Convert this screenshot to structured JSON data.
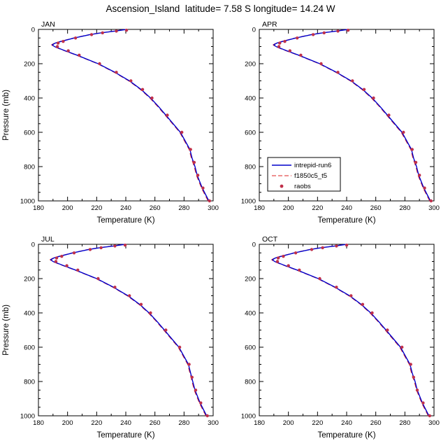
{
  "main": {
    "title": "Ascension_Island  latitude= 7.58 S longitude= 14.24 W"
  },
  "axes": {
    "x": {
      "label": "Temperature (K)",
      "min": 180,
      "max": 300,
      "ticks": [
        180,
        200,
        220,
        240,
        260,
        280,
        300
      ],
      "minor_step": 10
    },
    "y": {
      "label": "Pressure (mb)",
      "min": 0,
      "max": 1000,
      "ticks": [
        0,
        200,
        400,
        600,
        800,
        1000
      ],
      "minor_step": 50,
      "inverted": true
    }
  },
  "legend": {
    "panel": "APR",
    "entries": [
      {
        "label": "intrepid-run6",
        "style": "solid",
        "color": "#0000cc"
      },
      {
        "label": "f1850c5_t5",
        "style": "dashed",
        "color": "#dd2222"
      },
      {
        "label": "raobs",
        "style": "dots",
        "color": "#c0304a"
      }
    ]
  },
  "chart_data": [
    {
      "type": "line",
      "title": "JAN",
      "xlabel": "Temperature (K)",
      "ylabel": "Pressure (mb)",
      "xlim": [
        180,
        300
      ],
      "ylim": [
        1000,
        0
      ],
      "series": [
        {
          "name": "intrepid-run6",
          "style": "solid",
          "color": "#0000cc",
          "pressure": [
            1000,
            925,
            850,
            800,
            750,
            700,
            600,
            500,
            450,
            400,
            350,
            300,
            250,
            200,
            150,
            125,
            100,
            90,
            80,
            70,
            50,
            30,
            20,
            10,
            0
          ],
          "temperature": [
            297,
            292.5,
            289,
            287.5,
            285.5,
            284,
            277.5,
            267.5,
            262.5,
            257,
            250.5,
            242.5,
            232.5,
            221,
            206.5,
            198.5,
            191,
            189.5,
            191.5,
            195.5,
            204.5,
            215.5,
            223,
            232.5,
            240.5
          ]
        },
        {
          "name": "f1850c5_t5",
          "style": "dashed",
          "color": "#dd2222",
          "pressure": [
            1000,
            925,
            850,
            800,
            750,
            700,
            600,
            500,
            450,
            400,
            350,
            300,
            250,
            200,
            150,
            125,
            100,
            90,
            80,
            70,
            50,
            30,
            20,
            10,
            0
          ],
          "temperature": [
            296.5,
            292,
            288.5,
            287,
            285,
            283.5,
            277,
            267,
            262,
            256.5,
            250,
            242,
            232,
            220.5,
            206,
            198,
            190.5,
            189,
            191,
            195,
            204,
            215,
            222.5,
            232,
            240
          ]
        },
        {
          "name": "raobs",
          "style": "markers",
          "color": "#c0304a",
          "pressure": [
            1000,
            925,
            850,
            775,
            700,
            600,
            500,
            400,
            350,
            300,
            250,
            200,
            150,
            125,
            100,
            80,
            70,
            50,
            30,
            20,
            10,
            5
          ],
          "temperature": [
            297.5,
            293,
            289.5,
            287,
            284.5,
            278.5,
            268.5,
            258,
            251.5,
            243.5,
            233.5,
            222,
            208,
            200.5,
            193,
            193.5,
            197,
            205.5,
            216.5,
            224,
            233.5,
            240.5
          ]
        }
      ]
    },
    {
      "type": "line",
      "title": "APR",
      "xlabel": "Temperature (K)",
      "ylabel": "Pressure (mb)",
      "xlim": [
        180,
        300
      ],
      "ylim": [
        1000,
        0
      ],
      "series": [
        {
          "name": "intrepid-run6",
          "style": "solid",
          "color": "#0000cc",
          "pressure": [
            1000,
            925,
            850,
            800,
            750,
            700,
            600,
            500,
            450,
            400,
            350,
            300,
            250,
            200,
            150,
            125,
            100,
            90,
            80,
            70,
            50,
            30,
            20,
            10,
            0
          ],
          "temperature": [
            297.5,
            293,
            289.5,
            288,
            286,
            284.5,
            278,
            268,
            263,
            257.5,
            251,
            243,
            233,
            221.5,
            207,
            199,
            191.5,
            190,
            192,
            196,
            205,
            216,
            223.5,
            233,
            241
          ]
        },
        {
          "name": "f1850c5_t5",
          "style": "dashed",
          "color": "#dd2222",
          "pressure": [
            1000,
            925,
            850,
            800,
            750,
            700,
            600,
            500,
            450,
            400,
            350,
            300,
            250,
            200,
            150,
            125,
            100,
            90,
            80,
            70,
            50,
            30,
            20,
            10,
            0
          ],
          "temperature": [
            297,
            292.5,
            289,
            287.5,
            285.5,
            284,
            277.5,
            267.5,
            262.5,
            257,
            250.5,
            242.5,
            232.5,
            221,
            206.5,
            198.5,
            191,
            189.5,
            191.5,
            195.5,
            204.5,
            215.5,
            223,
            232.5,
            240.5
          ]
        },
        {
          "name": "raobs",
          "style": "markers",
          "color": "#c0304a",
          "pressure": [
            1000,
            925,
            850,
            775,
            700,
            600,
            500,
            400,
            350,
            300,
            250,
            200,
            150,
            125,
            100,
            80,
            70,
            50,
            30,
            20,
            10,
            5
          ],
          "temperature": [
            298,
            293.5,
            290,
            287.5,
            285,
            279,
            269,
            258.5,
            252,
            244,
            234,
            222.5,
            208.5,
            201,
            193.5,
            194,
            197.5,
            206,
            217,
            224.5,
            234,
            241
          ]
        }
      ]
    },
    {
      "type": "line",
      "title": "JUL",
      "xlabel": "Temperature (K)",
      "ylabel": "Pressure (mb)",
      "xlim": [
        180,
        300
      ],
      "ylim": [
        1000,
        0
      ],
      "series": [
        {
          "name": "intrepid-run6",
          "style": "solid",
          "color": "#0000cc",
          "pressure": [
            1000,
            925,
            850,
            800,
            750,
            700,
            600,
            500,
            450,
            400,
            350,
            300,
            250,
            200,
            150,
            125,
            100,
            90,
            80,
            70,
            50,
            30,
            20,
            10,
            0
          ],
          "temperature": [
            295.5,
            291,
            287.5,
            286,
            284.5,
            283,
            276.5,
            266.5,
            261.5,
            256,
            249.5,
            241.5,
            231.5,
            220,
            205.5,
            197.5,
            190,
            188.5,
            190.5,
            194.5,
            203.5,
            214.5,
            222,
            231.5,
            239.5
          ]
        },
        {
          "name": "f1850c5_t5",
          "style": "dashed",
          "color": "#dd2222",
          "pressure": [
            1000,
            925,
            850,
            800,
            750,
            700,
            600,
            500,
            450,
            400,
            350,
            300,
            250,
            200,
            150,
            125,
            100,
            90,
            80,
            70,
            50,
            30,
            20,
            10,
            0
          ],
          "temperature": [
            295,
            290.5,
            287,
            285.5,
            284,
            282.5,
            276,
            266,
            261,
            255.5,
            249,
            241,
            231,
            219.5,
            205,
            197,
            189.5,
            188,
            190,
            194,
            203,
            214,
            221.5,
            231,
            239
          ]
        },
        {
          "name": "raobs",
          "style": "markers",
          "color": "#c0304a",
          "pressure": [
            1000,
            925,
            850,
            775,
            700,
            600,
            500,
            400,
            350,
            300,
            250,
            200,
            150,
            125,
            100,
            80,
            70,
            50,
            30,
            20,
            10,
            5
          ],
          "temperature": [
            296,
            291.5,
            288,
            285.5,
            283.5,
            277,
            267.5,
            257,
            250.5,
            242.5,
            232.5,
            221,
            207,
            199.5,
            192,
            192.5,
            196,
            204.5,
            215.5,
            223,
            232.5,
            239.5
          ]
        }
      ]
    },
    {
      "type": "line",
      "title": "OCT",
      "xlabel": "Temperature (K)",
      "ylabel": "Pressure (mb)",
      "xlim": [
        180,
        300
      ],
      "ylim": [
        1000,
        0
      ],
      "series": [
        {
          "name": "intrepid-run6",
          "style": "solid",
          "color": "#0000cc",
          "pressure": [
            1000,
            925,
            850,
            800,
            750,
            700,
            600,
            500,
            450,
            400,
            350,
            300,
            250,
            200,
            150,
            125,
            100,
            90,
            80,
            70,
            50,
            30,
            20,
            10,
            0
          ],
          "temperature": [
            296.5,
            292,
            288.5,
            287,
            285,
            283.5,
            277,
            267,
            262,
            256.5,
            250,
            242,
            232,
            220.5,
            206,
            198,
            190.5,
            189,
            191,
            195,
            204,
            215,
            222.5,
            232,
            240
          ]
        },
        {
          "name": "f1850c5_t5",
          "style": "dashed",
          "color": "#dd2222",
          "pressure": [
            1000,
            925,
            850,
            800,
            750,
            700,
            600,
            500,
            450,
            400,
            350,
            300,
            250,
            200,
            150,
            125,
            100,
            90,
            80,
            70,
            50,
            30,
            20,
            10,
            0
          ],
          "temperature": [
            296,
            291.5,
            288,
            286.5,
            284.5,
            283,
            276.5,
            266.5,
            261.5,
            256,
            249.5,
            241.5,
            231.5,
            220,
            205.5,
            197.5,
            190,
            188.5,
            190.5,
            194.5,
            203.5,
            214.5,
            222,
            231.5,
            239.5
          ]
        },
        {
          "name": "raobs",
          "style": "markers",
          "color": "#c0304a",
          "pressure": [
            1000,
            925,
            850,
            775,
            700,
            600,
            500,
            400,
            350,
            300,
            250,
            200,
            150,
            125,
            100,
            80,
            70,
            50,
            30,
            20,
            10,
            5
          ],
          "temperature": [
            297,
            292.5,
            288.5,
            286,
            284,
            278,
            268,
            257.5,
            251,
            243,
            233,
            221.5,
            207.5,
            200,
            192.5,
            193,
            196.5,
            205,
            216,
            223.5,
            233,
            240
          ]
        }
      ]
    }
  ]
}
